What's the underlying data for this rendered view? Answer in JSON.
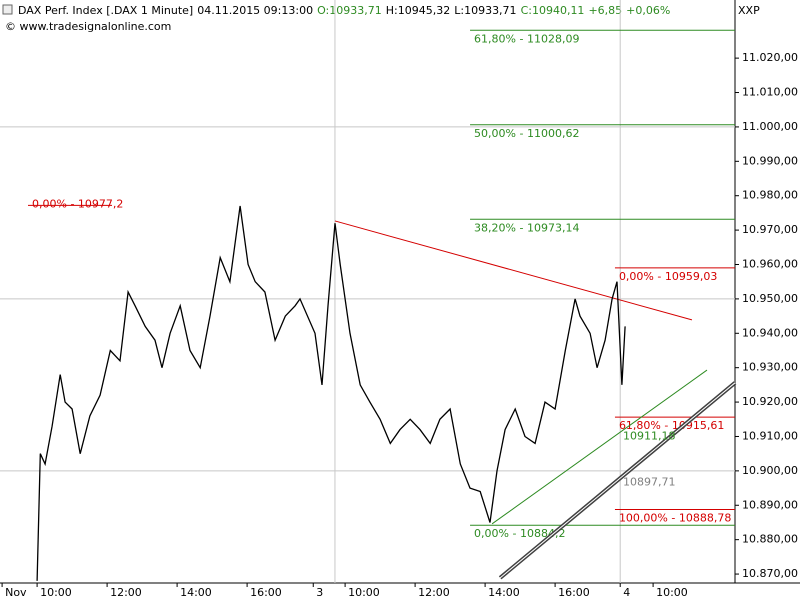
{
  "chart_data": {
    "type": "line",
    "header": [
      {
        "text": "DAX Perf. Index [.DAX  1 Minute]",
        "color": "#000000"
      },
      {
        "text": "04.11.2015 09:13:00",
        "color": "#000000"
      },
      {
        "text": "O:10933,71",
        "color": "#2e8b22"
      },
      {
        "text": "H:10945,32",
        "color": "#000000"
      },
      {
        "text": "L:10933,71",
        "color": "#000000"
      },
      {
        "text": "C:10940,11",
        "color": "#2e8b22"
      },
      {
        "text": "+6,85",
        "color": "#2e8b22"
      },
      {
        "text": "+0,06%",
        "color": "#2e8b22"
      }
    ],
    "subtitle": "© www.tradesignalonline.com",
    "axis_label": "XXP",
    "price": {
      "color": "#000000",
      "x": [
        1.0,
        1.09,
        1.23,
        1.43,
        1.66,
        1.8,
        2.0,
        2.23,
        2.51,
        2.8,
        3.09,
        3.37,
        3.6,
        3.8,
        4.09,
        4.37,
        4.57,
        4.8,
        5.09,
        5.37,
        5.66,
        5.94,
        6.23,
        6.51,
        6.8,
        7.03,
        7.23,
        7.51,
        7.8,
        8.09,
        8.37,
        8.51,
        8.94,
        9.14,
        9.31,
        9.51,
        9.66,
        9.94,
        10.23,
        10.51,
        10.8,
        11.09,
        11.37,
        11.66,
        11.94,
        12.23,
        12.51,
        12.8,
        13.09,
        13.37,
        13.66,
        13.94,
        14.14,
        14.37,
        14.66,
        14.94,
        15.23,
        15.51,
        15.8,
        16.09,
        16.37,
        16.51,
        16.8,
        17.0,
        17.23,
        17.43,
        17.57,
        17.71,
        17.8
      ],
      "values": [
        10868,
        10905,
        10902,
        10913,
        10928,
        10920,
        10918,
        10905,
        10916,
        10922,
        10935,
        10932,
        10952,
        10948,
        10942,
        10938,
        10930,
        10940,
        10948,
        10935,
        10930,
        10945,
        10962,
        10955,
        10977,
        10960,
        10955,
        10952,
        10938,
        10945,
        10948,
        10950,
        10940,
        10925,
        10948,
        10972,
        10960,
        10940,
        10925,
        10920,
        10915,
        10908,
        10912,
        10915,
        10912,
        10908,
        10915,
        10918,
        10902,
        10895,
        10894,
        10885,
        10900,
        10912,
        10918,
        10910,
        10908,
        10920,
        10918,
        10935,
        10950,
        10945,
        10940,
        10930,
        10938,
        10950,
        10955,
        10925,
        10942
      ]
    },
    "xlim": [
      -0.06,
      20.94
    ],
    "xticks": [
      {
        "value": 0,
        "label": "Nov"
      },
      {
        "value": 1,
        "label": "10:00"
      },
      {
        "value": 3,
        "label": "12:00"
      },
      {
        "value": 5,
        "label": "14:00"
      },
      {
        "value": 7,
        "label": "16:00"
      },
      {
        "value": 8.89,
        "label": "3"
      },
      {
        "value": 9.8,
        "label": "10:00"
      },
      {
        "value": 11.8,
        "label": "12:00"
      },
      {
        "value": 13.8,
        "label": "14:00"
      },
      {
        "value": 15.8,
        "label": "16:00"
      },
      {
        "value": 17.66,
        "label": "4"
      },
      {
        "value": 18.6,
        "label": "10:00"
      }
    ],
    "ylim": [
      10867.4,
      11036.9
    ],
    "yticks": [
      {
        "value": 10870,
        "label": "10.870,00"
      },
      {
        "value": 10880,
        "label": "10.880,00"
      },
      {
        "value": 10890,
        "label": "10.890,00"
      },
      {
        "value": 10900,
        "label": "10.900,00"
      },
      {
        "value": 10910,
        "label": "10.910,00"
      },
      {
        "value": 10920,
        "label": "10.920,00"
      },
      {
        "value": 10930,
        "label": "10.930,00"
      },
      {
        "value": 10940,
        "label": "10.940,00"
      },
      {
        "value": 10950,
        "label": "10.950,00"
      },
      {
        "value": 10960,
        "label": "10.960,00"
      },
      {
        "value": 10970,
        "label": "10.970,00"
      },
      {
        "value": 10980,
        "label": "10.980,00"
      },
      {
        "value": 10990,
        "label": "10.990,00"
      },
      {
        "value": 11000,
        "label": "11.000,00"
      },
      {
        "value": 11010,
        "label": "11.010,00"
      },
      {
        "value": 11020,
        "label": "11.020,00"
      }
    ],
    "hgrid": [
      11000,
      10950,
      10900
    ],
    "vgrid": [
      9.51,
      17.66
    ],
    "levels": [
      {
        "label": "61,80% - 11028,09",
        "value": 11028.09,
        "x": [
          13.37,
          20.94
        ],
        "color": "#2e8b22",
        "label_position": "below"
      },
      {
        "label": "50,00% - 11000,62",
        "value": 11000.62,
        "x": [
          13.37,
          20.94
        ],
        "color": "#2e8b22",
        "label_position": "below"
      },
      {
        "label": "38,20% - 10973,14",
        "value": 10973.14,
        "x": [
          13.37,
          20.94
        ],
        "color": "#2e8b22",
        "label_position": "below"
      },
      {
        "label": "0,00% - 10884,2",
        "value": 10884.2,
        "x": [
          13.37,
          20.94
        ],
        "color": "#2e8b22",
        "label_position": "below"
      },
      {
        "label": "0,00% - 10977,2",
        "value": 10977.2,
        "x": [
          0.74,
          3.14
        ],
        "color": "#d40000",
        "label_position": "above"
      },
      {
        "label": "0,00% - 10959,03",
        "value": 10959.03,
        "x": [
          17.51,
          20.94
        ],
        "color": "#d40000",
        "label_position": "below"
      },
      {
        "label": "61,80% - 10915,61",
        "value": 10915.61,
        "x": [
          17.51,
          20.94
        ],
        "color": "#d40000",
        "label_position": "below"
      },
      {
        "label": "100,00% - 10888,78",
        "value": 10888.78,
        "x": [
          17.51,
          20.94
        ],
        "color": "#d40000",
        "label_position": "below"
      }
    ],
    "price_labels": [
      {
        "label": "10911,18",
        "value": 10911.18,
        "x": 17.74,
        "color": "#2e8b22"
      },
      {
        "label": "10897,71",
        "value": 10897.71,
        "x": 17.74,
        "color": "#808080"
      }
    ],
    "trendlines": [
      {
        "x": [
          9.51,
          19.71
        ],
        "values": [
          10972.66,
          10943.9
        ],
        "color": "#d40000",
        "double": false
      },
      {
        "x": [
          14.0,
          20.14
        ],
        "values": [
          10884.6,
          10929.3
        ],
        "color": "#2e8b22",
        "double": false
      },
      {
        "x": [
          14.23,
          20.94
        ],
        "values": [
          10868.9,
          10925.6
        ],
        "color": "#404040",
        "double": true
      }
    ]
  }
}
